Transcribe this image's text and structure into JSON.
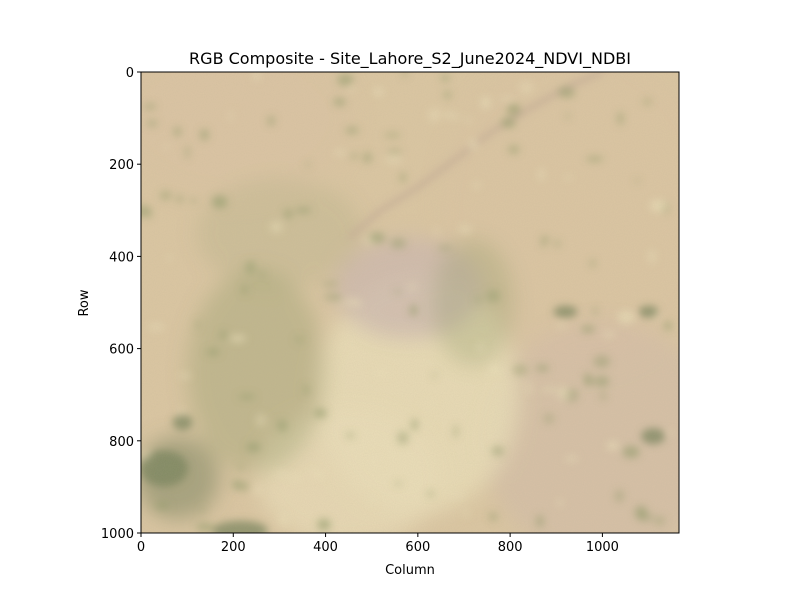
{
  "title": "RGB Composite - Site_Lahore_S2_June2024_NDVI_NDBI",
  "xlabel": "Column",
  "ylabel": "Row",
  "x_ticks": [
    0,
    200,
    400,
    600,
    800,
    1000
  ],
  "y_ticks": [
    0,
    200,
    400,
    600,
    800,
    1000
  ],
  "xlim": [
    0,
    1166
  ],
  "ylim": [
    1000,
    0
  ],
  "image": {
    "base_color": "#dcc7a3",
    "colors": {
      "desert": "#dcc4a4",
      "pale_sand": "#ece0ba",
      "urban": "#cdb8b0",
      "vegetation": "#8f9a68",
      "dark_vegetation": "#73805a",
      "river": "#c6ad97"
    }
  }
}
